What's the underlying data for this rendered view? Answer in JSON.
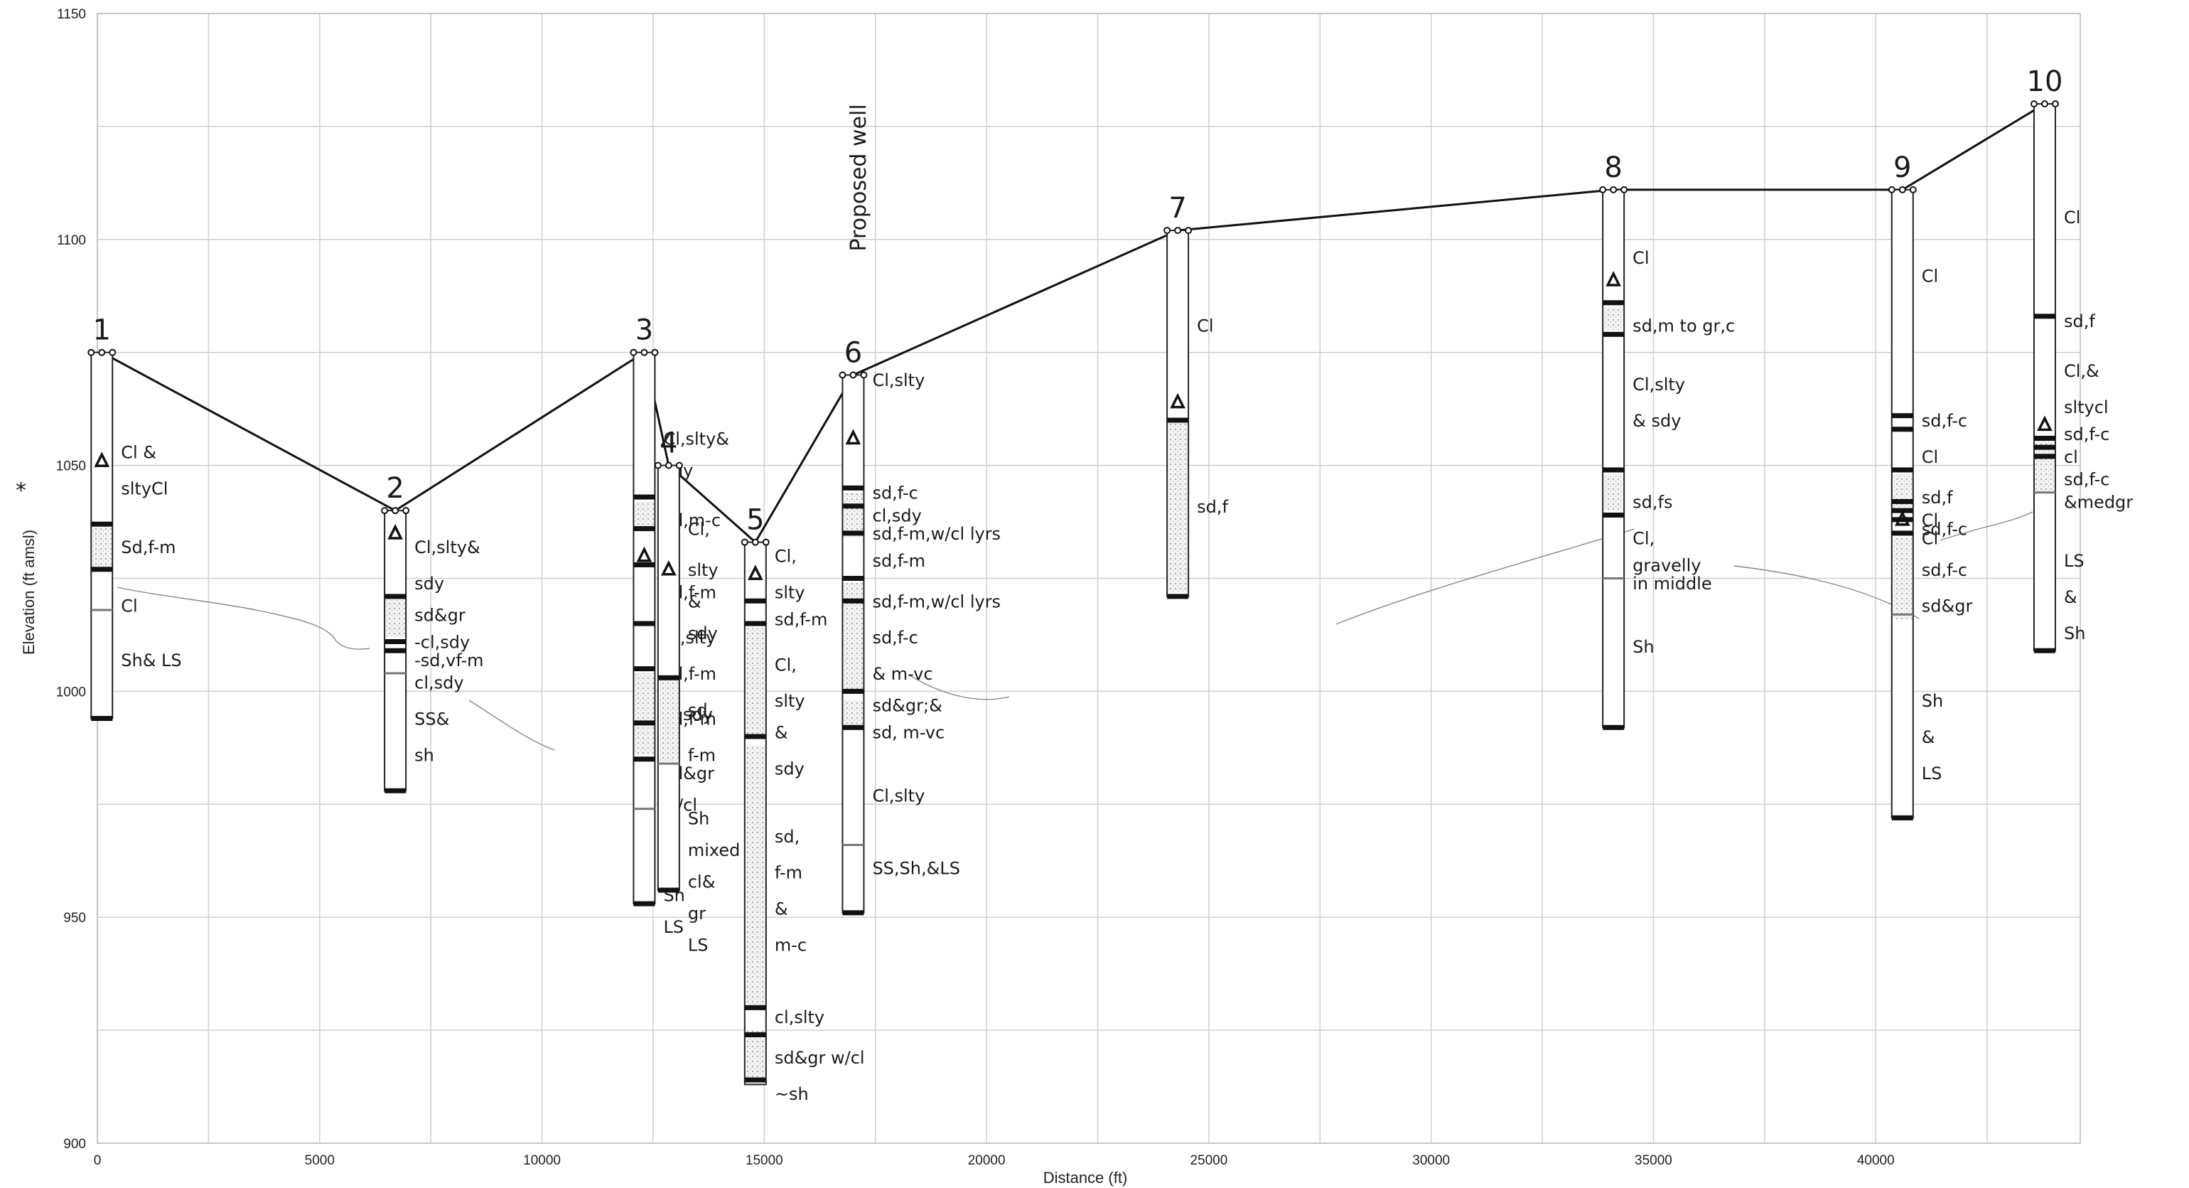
{
  "chart_data": {
    "type": "cross-section",
    "xlabel": "Distance (ft)",
    "ylabel": "Elevation (ft amsl)",
    "ylabel_marker": "*",
    "xlim": [
      0,
      44600
    ],
    "ylim": [
      900,
      1150
    ],
    "x_ticks": [
      "0",
      "5000",
      "10000",
      "15000",
      "20000",
      "25000",
      "30000",
      "35000",
      "40000"
    ],
    "y_ticks": [
      "900",
      "950",
      "1000",
      "1050",
      "1100",
      "1150"
    ],
    "annotation": "Proposed well",
    "grid": true,
    "wells": [
      {
        "id": "1",
        "x": 100,
        "top": 1075,
        "bottom": 994,
        "water_level": 1051,
        "sand": [
          [
            1037,
            1027
          ]
        ],
        "bands": [
          1037,
          1027,
          994
        ],
        "thin": [
          1018
        ],
        "labels": [
          {
            "t": "Cl &",
            "e": 1053
          },
          {
            "t": "sltyCl",
            "e": 1045
          },
          {
            "t": "Sd,f-m",
            "e": 1032
          },
          {
            "t": "Cl",
            "e": 1019
          },
          {
            "t": "Sh& LS",
            "e": 1007
          }
        ]
      },
      {
        "id": "2",
        "x": 6700,
        "top": 1040,
        "bottom": 978,
        "water_level": 1035,
        "sand": [
          [
            1021,
            1012
          ]
        ],
        "bands": [
          1021,
          1011,
          1009,
          978
        ],
        "thin": [
          1004
        ],
        "labels": [
          {
            "t": "Cl,slty&",
            "e": 1032
          },
          {
            "t": "sdy",
            "e": 1024
          },
          {
            "t": "sd&gr",
            "e": 1017
          },
          {
            "t": "-cl,sdy",
            "e": 1011
          },
          {
            "t": "-sd,vf-m",
            "e": 1007
          },
          {
            "t": "cl,sdy",
            "e": 1002
          },
          {
            "t": "SS&",
            "e": 994
          },
          {
            "t": "sh",
            "e": 986
          }
        ]
      },
      {
        "id": "3",
        "x": 12300,
        "top": 1075,
        "bottom": 953,
        "water_level": 1030,
        "sand": [
          [
            1042,
            1036
          ],
          [
            1004,
            986
          ]
        ],
        "bands": [
          1043,
          1036,
          1028,
          1015,
          1005,
          993,
          985,
          953
        ],
        "thin": [
          974
        ],
        "labels": [
          {
            "t": "Cl,slty&",
            "e": 1056
          },
          {
            "t": "sdy",
            "e": 1049
          },
          {
            "t": "sd,m-c",
            "e": 1038
          },
          {
            "t": "Cl",
            "e": 1030
          },
          {
            "t": "sd,f-m",
            "e": 1022
          },
          {
            "t": "Cl,slty",
            "e": 1012
          },
          {
            "t": "sd,f-m",
            "e": 1004
          },
          {
            "t": "cl,sdy",
            "e": 995
          },
          {
            "t": "sd,f-m",
            "e": 994
          },
          {
            "t": "sd&gr",
            "e": 982
          },
          {
            "t": "w/cl",
            "e": 975
          },
          {
            "t": "Cl",
            "e": 965
          },
          {
            "t": "Sh",
            "e": 955
          },
          {
            "t": "LS",
            "e": 948
          }
        ]
      },
      {
        "id": "4",
        "x": 12850,
        "top": 1050,
        "bottom": 956,
        "water_level": 1027,
        "sand": [
          [
            1003,
            984
          ]
        ],
        "bands": [
          1003,
          956
        ],
        "thin": [
          984
        ],
        "labels": [
          {
            "t": "Cl,",
            "e": 1036
          },
          {
            "t": "slty",
            "e": 1027
          },
          {
            "t": "&",
            "e": 1020
          },
          {
            "t": "sdy",
            "e": 1013
          },
          {
            "t": "sd,",
            "e": 996
          },
          {
            "t": "f-m",
            "e": 986
          },
          {
            "t": "Sh",
            "e": 972
          },
          {
            "t": "mixed",
            "e": 965
          },
          {
            "t": "cl&",
            "e": 958
          },
          {
            "t": "gr",
            "e": 951
          },
          {
            "t": "LS",
            "e": 944
          }
        ]
      },
      {
        "id": "5",
        "x": 14800,
        "top": 1033,
        "bottom": 913,
        "water_level": 1026,
        "sand": [
          [
            1014,
            990
          ],
          [
            988,
            930
          ],
          [
            925,
            914
          ]
        ],
        "bands": [
          1020,
          1015,
          990,
          930,
          924,
          914
        ],
        "thin": [],
        "labels": [
          {
            "t": "Cl,",
            "e": 1030
          },
          {
            "t": "slty",
            "e": 1022
          },
          {
            "t": "sd,f-m",
            "e": 1016
          },
          {
            "t": "Cl,",
            "e": 1006
          },
          {
            "t": "slty",
            "e": 998
          },
          {
            "t": "&",
            "e": 991
          },
          {
            "t": "sdy",
            "e": 983
          },
          {
            "t": "sd,",
            "e": 968
          },
          {
            "t": "f-m",
            "e": 960
          },
          {
            "t": "&",
            "e": 952
          },
          {
            "t": "m-c",
            "e": 944
          },
          {
            "t": "cl,slty",
            "e": 928
          },
          {
            "t": "sd&gr w/cl",
            "e": 919
          },
          {
            "t": "~sh",
            "e": 911
          }
        ]
      },
      {
        "id": "6",
        "x": 17000,
        "top": 1070,
        "bottom": 951,
        "water_level": 1056,
        "sand": [
          [
            1044,
            1034
          ],
          [
            1024,
            1000
          ],
          [
            998,
            992
          ]
        ],
        "bands": [
          1045,
          1041,
          1035,
          1025,
          1020,
          1000,
          992,
          951
        ],
        "thin": [
          966
        ],
        "labels": [
          {
            "t": "Cl,slty",
            "e": 1069
          },
          {
            "t": "sd,f-c",
            "e": 1044
          },
          {
            "t": "cl,sdy",
            "e": 1039
          },
          {
            "t": "sd,f-m,w/cl lyrs",
            "e": 1035
          },
          {
            "t": "sd,f-m",
            "e": 1029
          },
          {
            "t": "sd,f-m,w/cl lyrs",
            "e": 1020
          },
          {
            "t": "sd,f-c",
            "e": 1012
          },
          {
            "t": "& m-vc",
            "e": 1004
          },
          {
            "t": "sd&gr;&",
            "e": 997
          },
          {
            "t": "sd, m-vc",
            "e": 991
          },
          {
            "t": "Cl,slty",
            "e": 977
          },
          {
            "t": "SS,Sh,&LS",
            "e": 961
          }
        ]
      },
      {
        "id": "7",
        "x": 24300,
        "top": 1102,
        "bottom": 1021,
        "water_level": 1064,
        "sand": [
          [
            1060,
            1022
          ]
        ],
        "bands": [
          1060,
          1021
        ],
        "thin": [],
        "labels": [
          {
            "t": "Cl",
            "e": 1081
          },
          {
            "t": "sd,f",
            "e": 1041
          }
        ]
      },
      {
        "id": "8",
        "x": 34100,
        "top": 1111,
        "bottom": 992,
        "water_level": 1091,
        "sand": [
          [
            1085,
            1080
          ],
          [
            1048,
            1040
          ]
        ],
        "bands": [
          1086,
          1079,
          1049,
          1039,
          992
        ],
        "thin": [
          1025
        ],
        "labels": [
          {
            "t": "Cl",
            "e": 1096
          },
          {
            "t": "sd,m to gr,c",
            "e": 1081
          },
          {
            "t": "Cl,slty",
            "e": 1068
          },
          {
            "t": "& sdy",
            "e": 1060
          },
          {
            "t": "sd,fs",
            "e": 1042
          },
          {
            "t": "Cl,",
            "e": 1034
          },
          {
            "t": "gravelly",
            "e": 1028
          },
          {
            "t": "in middle",
            "e": 1024
          },
          {
            "t": "Sh",
            "e": 1010
          }
        ]
      },
      {
        "id": "9",
        "x": 40600,
        "top": 1111,
        "bottom": 972,
        "water_level": 1038,
        "sand": [
          [
            1048,
            1040
          ],
          [
            1034,
            1016
          ]
        ],
        "bands": [
          1061,
          1058,
          1049,
          1042,
          1040,
          1038,
          1035,
          972
        ],
        "thin": [
          1017
        ],
        "labels": [
          {
            "t": "Cl",
            "e": 1092
          },
          {
            "t": "sd,f-c",
            "e": 1060
          },
          {
            "t": "Cl",
            "e": 1052
          },
          {
            "t": "sd,f",
            "e": 1043
          },
          {
            "t": "Cl",
            "e": 1038
          },
          {
            "t": "sd,f-c",
            "e": 1036
          },
          {
            "t": "Cl",
            "e": 1034
          },
          {
            "t": "sd,f-c",
            "e": 1027
          },
          {
            "t": "sd&gr",
            "e": 1019
          },
          {
            "t": "Sh",
            "e": 998
          },
          {
            "t": "&",
            "e": 990
          },
          {
            "t": "LS",
            "e": 982
          }
        ]
      },
      {
        "id": "10",
        "x": 43800,
        "top": 1130,
        "bottom": 1009,
        "water_level": 1059,
        "sand": [
          [
            1056,
            1044
          ]
        ],
        "bands": [
          1083,
          1056,
          1054,
          1052,
          1009
        ],
        "thin": [
          1044
        ],
        "labels": [
          {
            "t": "Cl",
            "e": 1105
          },
          {
            "t": "sd,f",
            "e": 1082
          },
          {
            "t": "Cl,&",
            "e": 1071
          },
          {
            "t": "sltycl",
            "e": 1063
          },
          {
            "t": "sd,f-c",
            "e": 1057
          },
          {
            "t": "cl",
            "e": 1052
          },
          {
            "t": "sd,f-c",
            "e": 1047
          },
          {
            "t": "&medgr",
            "e": 1042
          },
          {
            "t": "LS",
            "e": 1029
          },
          {
            "t": "&",
            "e": 1021
          },
          {
            "t": "Sh",
            "e": 1013
          }
        ]
      }
    ]
  }
}
